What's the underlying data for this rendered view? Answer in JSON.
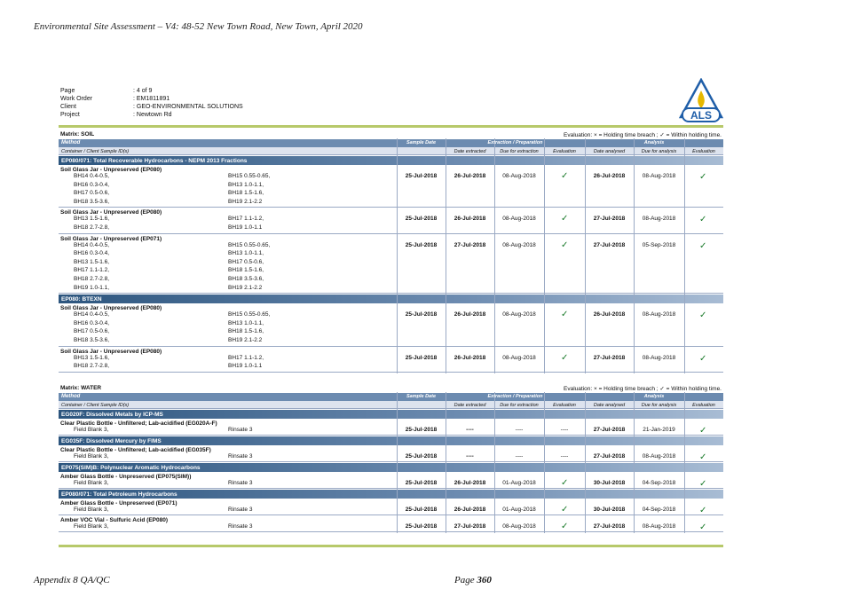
{
  "doc_header": "Environmental Site Assessment – V4: 48-52 New Town Road, New Town, April 2020",
  "footer": {
    "appendix": "Appendix 8 QA/QC",
    "page_label": "Page",
    "page_num": "360"
  },
  "meta": [
    {
      "key": "Page",
      "value": ": 4 of 9"
    },
    {
      "key": "Work Order",
      "value": ": EM1811891"
    },
    {
      "key": "Client",
      "value": ": GEO-ENVIRONMENTAL SOLUTIONS"
    },
    {
      "key": "Project",
      "value": ": Newtown Rd"
    }
  ],
  "logo": {
    "text": "ALS",
    "color": "#1f5ea8",
    "flame": "#e6b800"
  },
  "evaluation_note": "Evaluation: × = Holding time breach ; ✓ = Within holding time.",
  "headers": {
    "method": "Method",
    "container": "Container / Client Sample ID(s)",
    "sample_date": "Sample Date",
    "extraction": "Extraction / Preparation",
    "analysis": "Analysis",
    "date_extracted": "Date extracted",
    "due_extraction": "Due for extraction",
    "evaluation": "Evaluation",
    "date_analysed": "Date analysed",
    "due_analysis": "Due for analysis"
  },
  "tick": "✓",
  "soil": {
    "matrix": "Matrix: SOIL",
    "sections": [
      {
        "title": "EP080/071: Total Recoverable Hydrocarbons - NEPM 2013 Fractions",
        "groups": [
          {
            "container": "Soil Glass Jar - Unpreserved (EP080)",
            "samples": [
              [
                "BH14 0.4-0.5,",
                "BH15 0.55-0.65,"
              ],
              [
                "BH16 0.3-0.4,",
                "BH13 1.0-1.1,"
              ],
              [
                "BH17 0.5-0.6,",
                "BH18 1.5-1.6,"
              ],
              [
                "BH18 3.5-3.6,",
                "BH19 2.1-2.2"
              ]
            ],
            "sample_date": "25-Jul-2018",
            "date_extracted": "26-Jul-2018",
            "due_extraction": "08-Aug-2018",
            "date_analysed": "26-Jul-2018",
            "due_analysis": "08-Aug-2018"
          },
          {
            "container": "Soil Glass Jar - Unpreserved (EP080)",
            "samples": [
              [
                "BH13 1.5-1.6,",
                "BH17 1.1-1.2,"
              ],
              [
                "BH18 2.7-2.8,",
                "BH19 1.0-1.1"
              ]
            ],
            "sample_date": "25-Jul-2018",
            "date_extracted": "26-Jul-2018",
            "due_extraction": "08-Aug-2018",
            "date_analysed": "27-Jul-2018",
            "due_analysis": "08-Aug-2018"
          },
          {
            "container": "Soil Glass Jar - Unpreserved (EP071)",
            "samples": [
              [
                "BH14 0.4-0.5,",
                "BH15 0.55-0.65,"
              ],
              [
                "BH16 0.3-0.4,",
                "BH13 1.0-1.1,"
              ],
              [
                "BH13 1.5-1.6,",
                "BH17 0.5-0.6,"
              ],
              [
                "BH17 1.1-1.2,",
                "BH18 1.5-1.6,"
              ],
              [
                "BH18 2.7-2.8,",
                "BH18 3.5-3.6,"
              ],
              [
                "BH19 1.0-1.1,",
                "BH19 2.1-2.2"
              ]
            ],
            "sample_date": "25-Jul-2018",
            "date_extracted": "27-Jul-2018",
            "due_extraction": "08-Aug-2018",
            "date_analysed": "27-Jul-2018",
            "due_analysis": "05-Sep-2018"
          }
        ]
      },
      {
        "title": "EP080: BTEXN",
        "groups": [
          {
            "container": "Soil Glass Jar - Unpreserved (EP080)",
            "samples": [
              [
                "BH14 0.4-0.5,",
                "BH15 0.55-0.65,"
              ],
              [
                "BH16 0.3-0.4,",
                "BH13 1.0-1.1,"
              ],
              [
                "BH17 0.5-0.6,",
                "BH18 1.5-1.6,"
              ],
              [
                "BH18 3.5-3.6,",
                "BH19 2.1-2.2"
              ]
            ],
            "sample_date": "25-Jul-2018",
            "date_extracted": "26-Jul-2018",
            "due_extraction": "08-Aug-2018",
            "date_analysed": "26-Jul-2018",
            "due_analysis": "08-Aug-2018"
          },
          {
            "container": "Soil Glass Jar - Unpreserved (EP080)",
            "samples": [
              [
                "BH13 1.5-1.6,",
                "BH17 1.1-1.2,"
              ],
              [
                "BH18 2.7-2.8,",
                "BH19 1.0-1.1"
              ]
            ],
            "sample_date": "25-Jul-2018",
            "date_extracted": "26-Jul-2018",
            "due_extraction": "08-Aug-2018",
            "date_analysed": "27-Jul-2018",
            "due_analysis": "08-Aug-2018"
          }
        ]
      }
    ]
  },
  "water": {
    "matrix": "Matrix: WATER",
    "sections": [
      {
        "title": "EG020F: Dissolved Metals by ICP-MS",
        "groups": [
          {
            "container": "Clear Plastic Bottle - Unfiltered; Lab-acidified (EG020A-F)",
            "samples": [
              [
                "Field Blank 3,",
                "Rinsate 3"
              ]
            ],
            "sample_date": "25-Jul-2018",
            "date_extracted": "----",
            "due_extraction": "----",
            "eval_ext": "----",
            "date_analysed": "27-Jul-2018",
            "due_analysis": "21-Jan-2019"
          }
        ]
      },
      {
        "title": "EG035F: Dissolved Mercury by FIMS",
        "groups": [
          {
            "container": "Clear Plastic Bottle - Unfiltered; Lab-acidified (EG035F)",
            "samples": [
              [
                "Field Blank 3,",
                "Rinsate 3"
              ]
            ],
            "sample_date": "25-Jul-2018",
            "date_extracted": "----",
            "due_extraction": "----",
            "eval_ext": "----",
            "date_analysed": "27-Jul-2018",
            "due_analysis": "08-Aug-2018"
          }
        ]
      },
      {
        "title": "EP075(SIM)B: Polynuclear Aromatic Hydrocarbons",
        "groups": [
          {
            "container": "Amber Glass Bottle - Unpreserved (EP075(SIM))",
            "samples": [
              [
                "Field Blank 3,",
                "Rinsate 3"
              ]
            ],
            "sample_date": "25-Jul-2018",
            "date_extracted": "26-Jul-2018",
            "due_extraction": "01-Aug-2018",
            "date_analysed": "30-Jul-2018",
            "due_analysis": "04-Sep-2018"
          }
        ]
      },
      {
        "title": "EP080/071: Total Petroleum Hydrocarbons",
        "groups": [
          {
            "container": "Amber Glass Bottle - Unpreserved (EP071)",
            "samples": [
              [
                "Field Blank 3,",
                "Rinsate 3"
              ]
            ],
            "sample_date": "25-Jul-2018",
            "date_extracted": "26-Jul-2018",
            "due_extraction": "01-Aug-2018",
            "date_analysed": "30-Jul-2018",
            "due_analysis": "04-Sep-2018"
          },
          {
            "container": "Amber VOC Vial - Sulfuric Acid (EP080)",
            "samples": [
              [
                "Field Blank 3,",
                "Rinsate 3"
              ]
            ],
            "sample_date": "25-Jul-2018",
            "date_extracted": "27-Jul-2018",
            "due_extraction": "08-Aug-2018",
            "date_analysed": "27-Jul-2018",
            "due_analysis": "08-Aug-2018"
          }
        ]
      }
    ]
  }
}
